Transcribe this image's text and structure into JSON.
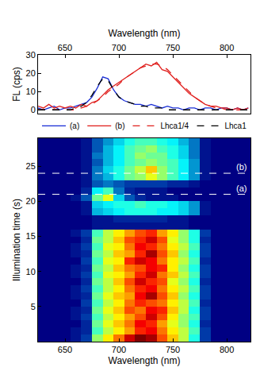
{
  "chart_data": [
    {
      "type": "line",
      "x_label": "Wavelength (nm)",
      "y_label": "FL (cps)",
      "xlim": [
        625,
        822
      ],
      "xticks": [
        650,
        700,
        750,
        800
      ],
      "ylim": [
        -2,
        30
      ],
      "yticks": [
        0,
        10,
        20,
        30
      ],
      "grid": false,
      "legend": "bottom",
      "x": [
        625,
        630,
        635,
        640,
        645,
        650,
        655,
        660,
        665,
        670,
        675,
        680,
        685,
        690,
        695,
        700,
        705,
        710,
        715,
        720,
        725,
        730,
        735,
        740,
        745,
        750,
        755,
        760,
        765,
        770,
        775,
        780,
        785,
        790,
        795,
        800,
        805,
        810,
        815,
        820
      ],
      "series": [
        {
          "name": "(a)",
          "color": "#1a2fd6",
          "line_style": "solid",
          "values": [
            1,
            0,
            1,
            2,
            0,
            1,
            1,
            2,
            3,
            4,
            7,
            12,
            18,
            17,
            11,
            7,
            5,
            4,
            3,
            3,
            2,
            3,
            2,
            1,
            2,
            1,
            1,
            0,
            1,
            1,
            0,
            1,
            1,
            0,
            1,
            1,
            0,
            1,
            0,
            1
          ]
        },
        {
          "name": "(b)",
          "color": "#e0201e",
          "line_style": "solid",
          "values": [
            2,
            1,
            3,
            1,
            2,
            1,
            2,
            1,
            3,
            2,
            4,
            5,
            8,
            11,
            13,
            15,
            17,
            19,
            21,
            23,
            25,
            24,
            26,
            22,
            21,
            18,
            15,
            12,
            9,
            7,
            5,
            3,
            2,
            2,
            1,
            1,
            0,
            1,
            0,
            1
          ]
        },
        {
          "name": "Lhca1/4",
          "color": "#e0201e",
          "line_style": "dashed",
          "values": [
            0,
            0,
            0,
            0,
            0,
            0,
            0,
            0,
            1,
            2,
            3,
            5,
            7,
            10,
            12,
            14,
            17,
            19,
            21,
            23,
            24,
            25,
            25,
            24,
            22,
            19,
            16,
            13,
            10,
            7,
            5,
            3,
            2,
            1,
            1,
            0,
            0,
            0,
            0,
            0
          ]
        },
        {
          "name": "Lhca1",
          "color": "#000000",
          "line_style": "dashed",
          "values": [
            0,
            0,
            0,
            0,
            0,
            0,
            0,
            1,
            2,
            4,
            8,
            13,
            17,
            16,
            11,
            7,
            5,
            4,
            3,
            2,
            2,
            1,
            1,
            1,
            0,
            0,
            0,
            0,
            0,
            0,
            0,
            0,
            0,
            0,
            0,
            0,
            0,
            0,
            0,
            0
          ]
        }
      ]
    },
    {
      "type": "heatmap",
      "x_label": "Wavelength (nm)",
      "y_label": "Illumination time (s)",
      "xlim": [
        625,
        822
      ],
      "xticks": [
        650,
        700,
        750,
        800
      ],
      "ylim": [
        0,
        29
      ],
      "yticks": [
        5,
        10,
        15,
        20,
        25
      ],
      "x": [
        630,
        640,
        650,
        660,
        670,
        680,
        690,
        700,
        710,
        720,
        730,
        740,
        750,
        760,
        770,
        780,
        790,
        800,
        810,
        820
      ],
      "y": [
        0.5,
        1.5,
        2.5,
        3.5,
        4.5,
        5.5,
        6.5,
        7.5,
        8.5,
        9.5,
        10.5,
        11.5,
        12.5,
        13.5,
        14.5,
        15.5,
        16.5,
        17.5,
        18.5,
        19.5,
        20.5,
        21.5,
        22.5,
        23.5,
        24.5,
        25.5,
        26.5,
        27.5,
        28.5
      ],
      "cells": [
        [
          1,
          1,
          1,
          2,
          4,
          14,
          17,
          20,
          24,
          26,
          25,
          21,
          18,
          15,
          11,
          4,
          1,
          1,
          1,
          1
        ],
        [
          1,
          1,
          1,
          2,
          3,
          12,
          15,
          17,
          19,
          22,
          23,
          20,
          17,
          15,
          12,
          4,
          1,
          1,
          1,
          1
        ],
        [
          1,
          1,
          1,
          1,
          3,
          13,
          16,
          18,
          20,
          23,
          22,
          19,
          16,
          14,
          11,
          3,
          1,
          1,
          1,
          1
        ],
        [
          1,
          1,
          1,
          2,
          4,
          12,
          15,
          17,
          19,
          21,
          24,
          21,
          17,
          14,
          12,
          4,
          1,
          1,
          1,
          1
        ],
        [
          1,
          1,
          1,
          2,
          3,
          13,
          16,
          18,
          21,
          20,
          23,
          22,
          18,
          15,
          11,
          4,
          1,
          1,
          1,
          1
        ],
        [
          1,
          1,
          1,
          1,
          4,
          12,
          15,
          17,
          20,
          22,
          21,
          20,
          17,
          15,
          12,
          3,
          1,
          1,
          1,
          1
        ],
        [
          1,
          1,
          1,
          2,
          3,
          13,
          16,
          18,
          19,
          23,
          25,
          21,
          18,
          14,
          11,
          4,
          1,
          1,
          1,
          1
        ],
        [
          1,
          1,
          1,
          2,
          4,
          12,
          15,
          17,
          20,
          22,
          23,
          20,
          17,
          15,
          12,
          4,
          1,
          1,
          1,
          1
        ],
        [
          1,
          1,
          1,
          1,
          3,
          13,
          15,
          18,
          21,
          24,
          22,
          21,
          16,
          14,
          11,
          3,
          1,
          1,
          1,
          1
        ],
        [
          1,
          1,
          1,
          2,
          4,
          12,
          16,
          17,
          19,
          22,
          24,
          20,
          18,
          15,
          12,
          4,
          1,
          1,
          1,
          1
        ],
        [
          1,
          1,
          1,
          2,
          3,
          13,
          15,
          18,
          20,
          21,
          23,
          22,
          17,
          14,
          11,
          4,
          1,
          1,
          1,
          1
        ],
        [
          1,
          1,
          1,
          1,
          4,
          12,
          16,
          17,
          22,
          24,
          23,
          20,
          17,
          15,
          12,
          3,
          1,
          1,
          1,
          1
        ],
        [
          1,
          1,
          1,
          2,
          3,
          13,
          15,
          18,
          19,
          22,
          25,
          21,
          18,
          14,
          11,
          4,
          1,
          1,
          1,
          1
        ],
        [
          1,
          1,
          1,
          2,
          4,
          12,
          16,
          17,
          20,
          23,
          22,
          20,
          17,
          15,
          12,
          4,
          1,
          1,
          1,
          1
        ],
        [
          1,
          1,
          1,
          1,
          3,
          13,
          15,
          18,
          21,
          22,
          24,
          21,
          16,
          14,
          11,
          3,
          1,
          1,
          1,
          1
        ],
        [
          1,
          1,
          1,
          2,
          4,
          12,
          15,
          17,
          19,
          21,
          22,
          19,
          17,
          14,
          11,
          4,
          1,
          1,
          1,
          1
        ],
        [
          1,
          1,
          1,
          1,
          1,
          2,
          2,
          2,
          2,
          2,
          2,
          2,
          2,
          2,
          1,
          1,
          1,
          1,
          1,
          1
        ],
        [
          1,
          1,
          1,
          1,
          1,
          2,
          2,
          3,
          3,
          3,
          3,
          3,
          2,
          2,
          1,
          1,
          1,
          1,
          1,
          1
        ],
        [
          1,
          1,
          1,
          1,
          2,
          8,
          9,
          10,
          11,
          11,
          11,
          10,
          10,
          9,
          7,
          2,
          1,
          1,
          1,
          1
        ],
        [
          1,
          1,
          1,
          1,
          2,
          9,
          10,
          11,
          11,
          12,
          11,
          11,
          10,
          9,
          7,
          2,
          1,
          1,
          1,
          1
        ],
        [
          1,
          1,
          1,
          2,
          5,
          13,
          16,
          9,
          5,
          3,
          2,
          2,
          2,
          1,
          1,
          1,
          1,
          1,
          1,
          1
        ],
        [
          1,
          1,
          1,
          1,
          3,
          10,
          12,
          6,
          3,
          2,
          2,
          2,
          1,
          1,
          1,
          1,
          1,
          1,
          1,
          1
        ],
        [
          1,
          1,
          1,
          1,
          2,
          5,
          6,
          5,
          4,
          4,
          4,
          4,
          3,
          3,
          2,
          1,
          1,
          1,
          1,
          1
        ],
        [
          1,
          1,
          1,
          1,
          2,
          6,
          8,
          11,
          13,
          14,
          16,
          14,
          12,
          10,
          7,
          2,
          1,
          1,
          1,
          1
        ],
        [
          1,
          1,
          1,
          1,
          2,
          6,
          9,
          11,
          13,
          15,
          18,
          14,
          12,
          10,
          7,
          2,
          1,
          1,
          1,
          1
        ],
        [
          1,
          1,
          1,
          1,
          2,
          5,
          8,
          10,
          12,
          13,
          14,
          13,
          12,
          10,
          7,
          2,
          1,
          1,
          1,
          1
        ],
        [
          1,
          1,
          1,
          1,
          2,
          6,
          8,
          10,
          12,
          14,
          13,
          13,
          11,
          9,
          6,
          2,
          1,
          1,
          1,
          1
        ],
        [
          1,
          1,
          1,
          1,
          2,
          5,
          8,
          10,
          12,
          13,
          14,
          12,
          11,
          9,
          6,
          2,
          1,
          1,
          1,
          1
        ],
        [
          1,
          1,
          1,
          1,
          2,
          5,
          7,
          9,
          11,
          12,
          12,
          11,
          10,
          8,
          6,
          2,
          1,
          1,
          1,
          1
        ]
      ],
      "line_style": "dashed",
      "annotations": [
        {
          "text": "(a)",
          "y": 21
        },
        {
          "text": "(b)",
          "y": 24
        }
      ]
    }
  ]
}
